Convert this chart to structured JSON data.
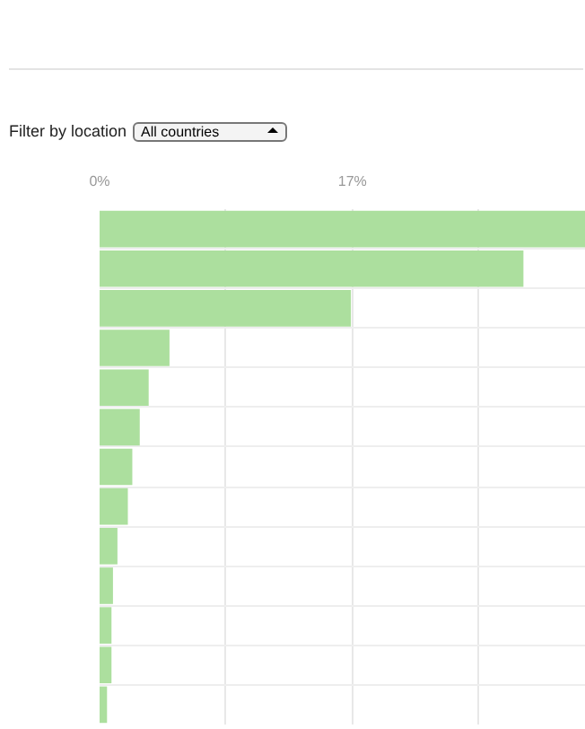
{
  "chart_data": {
    "type": "bar",
    "orientation": "horizontal",
    "annotations": [
      "Filter by location",
      "All countries"
    ],
    "categories": [
      null,
      null,
      null,
      null,
      null,
      null,
      null,
      null,
      null,
      null,
      null,
      null,
      null
    ],
    "values": [
      32.7,
      28.5,
      16.9,
      4.7,
      3.3,
      2.7,
      2.2,
      1.9,
      1.2,
      0.9,
      0.8,
      0.8,
      0.5
    ],
    "color": "#acdf9e",
    "xlim": [
      0,
      32.7
    ],
    "xticks": [
      {
        "value": 0,
        "label": "0%"
      },
      {
        "value": 8.5,
        "label": null
      },
      {
        "value": 17,
        "label": "17%"
      },
      {
        "value": 25.5,
        "label": null
      }
    ],
    "grid": "x"
  }
}
